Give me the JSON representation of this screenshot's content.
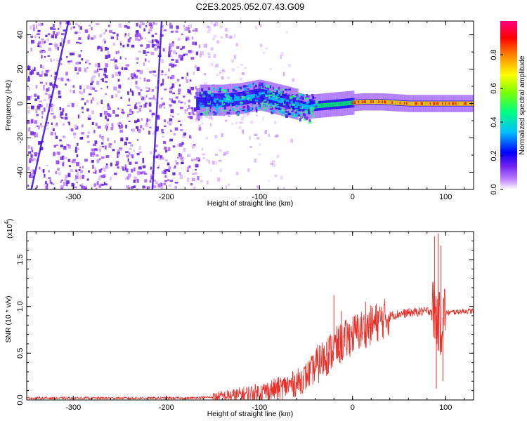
{
  "title": "C2E3.2025.052.07.43.G09",
  "chart_data": [
    {
      "type": "heatmap",
      "xlabel": "Height of straight line (km)",
      "ylabel": "Frequency (Hz)",
      "xlim": [
        -350,
        130
      ],
      "ylim": [
        -50,
        48
      ],
      "xticks": [
        -300,
        -200,
        -100,
        0,
        100
      ],
      "yticks": [
        -40,
        -20,
        0,
        20,
        40
      ],
      "colorbar": {
        "label": "Normalized spectral amplitude",
        "range": [
          0,
          1
        ],
        "ticks": [
          "0.0",
          "0.2",
          "0.4",
          "0.6",
          "0.8"
        ],
        "colors": [
          "#ffffff",
          "#c080ff",
          "#7020f0",
          "#0000ff",
          "#00c0ff",
          "#00ff80",
          "#80ff00",
          "#ffff00",
          "#ff8000",
          "#ff0000",
          "#ff0080"
        ]
      },
      "signal_track": [
        {
          "x": -165,
          "f": 2
        },
        {
          "x": -140,
          "f": 2
        },
        {
          "x": -120,
          "f": 3
        },
        {
          "x": -100,
          "f": 5
        },
        {
          "x": -85,
          "f": 3
        },
        {
          "x": -70,
          "f": 1
        },
        {
          "x": -50,
          "f": -2
        },
        {
          "x": -30,
          "f": -1
        },
        {
          "x": -10,
          "f": 0
        },
        {
          "x": 10,
          "f": 1
        },
        {
          "x": 30,
          "f": 1
        },
        {
          "x": 60,
          "f": 0
        },
        {
          "x": 90,
          "f": 0
        },
        {
          "x": 130,
          "f": 0
        }
      ],
      "streaks": [
        {
          "x_top": -305,
          "x_bottom": -345
        },
        {
          "x_top": -205,
          "x_bottom": -215
        }
      ]
    },
    {
      "type": "line",
      "xlabel": "Height of straight line (km)",
      "ylabel": "SNR (10 * v/v)",
      "y_multiplier": "(x10",
      "y_multiplier_exp": "4",
      "y_multiplier_close": ")",
      "xlim": [
        -350,
        130
      ],
      "ylim": [
        0,
        1.8
      ],
      "xticks": [
        -300,
        -200,
        -100,
        0,
        100
      ],
      "yticks": [
        "0.0",
        "0.5",
        "1.0",
        "1.5"
      ],
      "color": "#e8302a",
      "series": [
        {
          "x": [
            -350,
            -300,
            -250,
            -200,
            -175,
            -150,
            -125,
            -100,
            -90,
            -80,
            -70,
            -60,
            -50,
            -40,
            -30,
            -20,
            -10,
            0,
            10,
            20,
            30,
            40,
            50,
            60,
            70,
            80,
            85,
            88,
            90,
            92,
            95,
            98,
            100,
            110,
            120,
            130
          ],
          "y": [
            0.02,
            0.02,
            0.02,
            0.02,
            0.02,
            0.03,
            0.05,
            0.08,
            0.1,
            0.12,
            0.15,
            0.18,
            0.25,
            0.35,
            0.45,
            0.55,
            0.62,
            0.7,
            0.75,
            0.8,
            0.85,
            0.9,
            0.92,
            0.93,
            0.94,
            0.95,
            0.96,
            0.95,
            0.9,
            0.85,
            0.8,
            0.92,
            0.93,
            0.94,
            0.95,
            0.95
          ]
        }
      ],
      "spikes": [
        {
          "x": -45,
          "y": 0.28
        },
        {
          "x": -28,
          "y": 0.62
        },
        {
          "x": -20,
          "y": 1.12
        },
        {
          "x": -12,
          "y": 0.95
        },
        {
          "x": 14,
          "y": 1.05
        },
        {
          "x": 88,
          "y": 1.75
        },
        {
          "x": 90,
          "y": 0.12
        },
        {
          "x": 92,
          "y": 1.78
        },
        {
          "x": 95,
          "y": 1.65
        },
        {
          "x": 97,
          "y": 0.2
        }
      ]
    }
  ]
}
